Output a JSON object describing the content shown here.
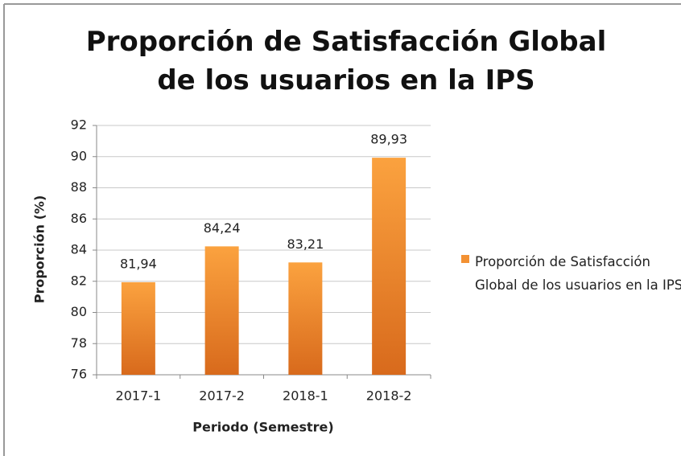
{
  "chart_data": {
    "type": "bar",
    "title": "Proporción de Satisfacción Global de los usuarios en la IPS",
    "x_label": "Periodo (Semestre)",
    "y_label": "Proporción (%)",
    "categories": [
      "2017-1",
      "2017-2",
      "2018-1",
      "2018-2"
    ],
    "series": [
      {
        "name": "Proporción de Satisfacción Global de los usuarios en la IPS",
        "color": "#f39133",
        "values": [
          81.94,
          84.24,
          83.21,
          89.93
        ],
        "value_labels": [
          "81,94",
          "84,24",
          "83,21",
          "89,93"
        ]
      }
    ],
    "ylim": [
      76,
      92
    ],
    "yticks": [
      76,
      78,
      80,
      82,
      84,
      86,
      88,
      90,
      92
    ],
    "grid": true,
    "legend": "right"
  }
}
